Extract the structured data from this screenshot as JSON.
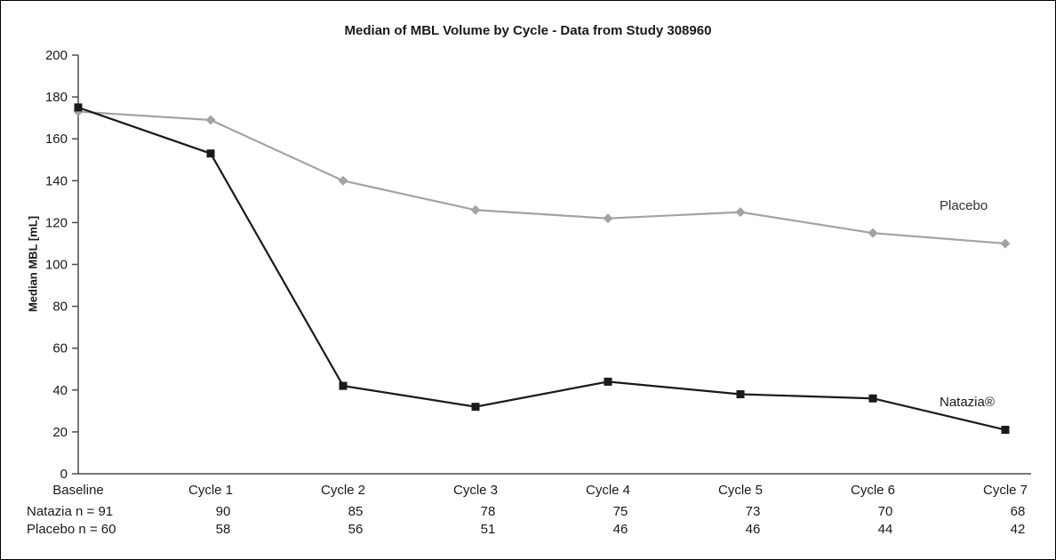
{
  "chart": {
    "title": "Median of MBL Volume by Cycle - Data from Study 308960",
    "ylabel": "Median MBL [mL]"
  },
  "chart_data": {
    "type": "line",
    "title": "Median of MBL Volume by Cycle - Data from Study 308960",
    "xlabel": "",
    "ylabel": "Median MBL [mL]",
    "ylim": [
      0,
      200
    ],
    "ytick_step": 20,
    "grid": false,
    "legend_position": "end-of-line-labels",
    "categories": [
      "Baseline",
      "Cycle 1",
      "Cycle 2",
      "Cycle 3",
      "Cycle 4",
      "Cycle 5",
      "Cycle 6",
      "Cycle 7"
    ],
    "series": [
      {
        "name": "Placebo",
        "marker": "diamond",
        "color": "#a3a3a3",
        "values": [
          173,
          169,
          140,
          126,
          122,
          125,
          115,
          110
        ]
      },
      {
        "name": "Natazia®",
        "marker": "square",
        "color": "#1a1a1a",
        "values": [
          175,
          153,
          42,
          32,
          44,
          38,
          36,
          21
        ]
      }
    ],
    "sample_size_rows": [
      {
        "label": "Natazia  n = 91",
        "values": [
          "90",
          "85",
          "78",
          "75",
          "73",
          "70",
          "68"
        ]
      },
      {
        "label": "Placebo n = 60",
        "values": [
          "58",
          "56",
          "51",
          "46",
          "46",
          "44",
          "42"
        ]
      }
    ]
  }
}
